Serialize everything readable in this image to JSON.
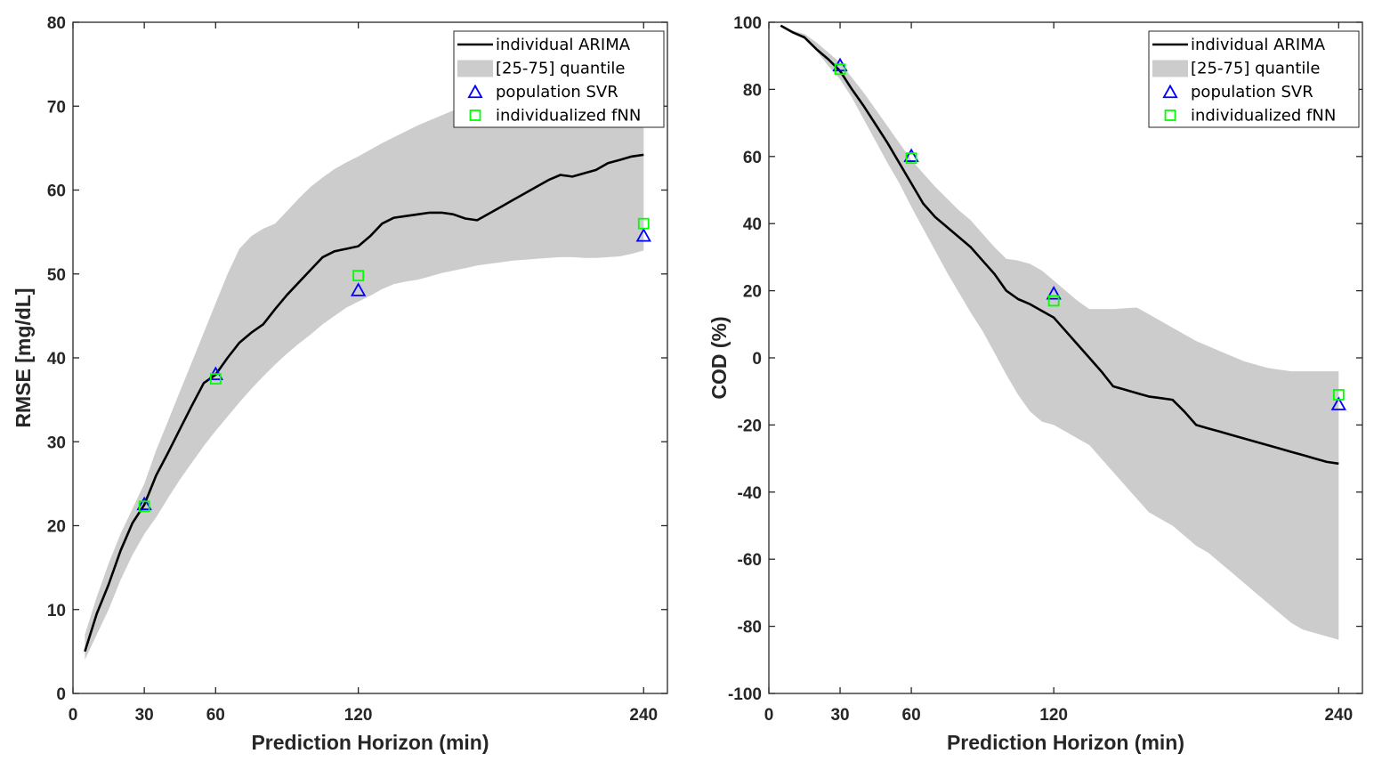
{
  "chart_data": [
    {
      "type": "line",
      "xlabel": "Prediction Horizon (min)",
      "ylabel": "RMSE [mg/dL]",
      "xlim": [
        0,
        250
      ],
      "ylim": [
        0,
        80
      ],
      "xticks": [
        0,
        30,
        60,
        120,
        240
      ],
      "yticks": [
        0,
        10,
        20,
        30,
        40,
        50,
        60,
        70,
        80
      ],
      "legend_position": "top-right",
      "legend": [
        "individual ARIMA",
        "[25-75] quantile",
        "population SVR",
        "individualized fNN"
      ],
      "colors": {
        "line": "#000000",
        "band": "#cccccc",
        "svr": "#0000ff",
        "fnn": "#00ff00"
      },
      "series": [
        {
          "name": "individual ARIMA",
          "kind": "line",
          "x": [
            5,
            10,
            15,
            20,
            25,
            30,
            35,
            40,
            45,
            50,
            55,
            60,
            65,
            70,
            75,
            80,
            85,
            90,
            95,
            100,
            105,
            110,
            115,
            120,
            125,
            130,
            135,
            140,
            145,
            150,
            155,
            160,
            165,
            170,
            175,
            180,
            185,
            190,
            195,
            200,
            205,
            210,
            215,
            220,
            225,
            230,
            235,
            240
          ],
          "y": [
            5,
            9.5,
            13,
            17,
            20.3,
            22.5,
            26,
            28.7,
            31.5,
            34.3,
            37,
            38,
            40,
            41.8,
            43,
            44,
            45.8,
            47.5,
            49,
            50.5,
            52,
            52.7,
            53,
            53.3,
            54.5,
            56,
            56.7,
            56.9,
            57.1,
            57.3,
            57.3,
            57.1,
            56.6,
            56.4,
            57.2,
            58,
            58.8,
            59.6,
            60.4,
            61.2,
            61.8,
            61.6,
            62.0,
            62.4,
            63.2,
            63.6,
            64.0,
            64.2
          ]
        },
        {
          "name": "[25-75] quantile",
          "kind": "band",
          "x": [
            5,
            10,
            15,
            20,
            25,
            30,
            35,
            40,
            45,
            50,
            55,
            60,
            65,
            70,
            75,
            80,
            85,
            90,
            95,
            100,
            105,
            110,
            115,
            120,
            125,
            130,
            135,
            140,
            145,
            150,
            155,
            160,
            165,
            170,
            175,
            180,
            185,
            190,
            195,
            200,
            205,
            210,
            215,
            220,
            225,
            230,
            235,
            240
          ],
          "low": [
            4,
            7,
            10,
            13.5,
            16.5,
            19,
            21,
            23.3,
            25.5,
            27.5,
            29.5,
            31.3,
            33,
            34.7,
            36.3,
            37.8,
            39.2,
            40.5,
            41.7,
            42.8,
            44,
            45,
            46,
            46.7,
            47.4,
            48.2,
            48.8,
            49.1,
            49.3,
            49.7,
            50.1,
            50.4,
            50.7,
            51.0,
            51.2,
            51.4,
            51.6,
            51.7,
            51.8,
            51.9,
            52.0,
            52.0,
            51.9,
            51.9,
            52.0,
            52.1,
            52.4,
            52.8
          ],
          "high": [
            7,
            11.5,
            15.5,
            19,
            22,
            25,
            29,
            32.5,
            36,
            39.5,
            43,
            46.5,
            50,
            53,
            54.5,
            55.4,
            56.0,
            57.5,
            59,
            60.4,
            61.5,
            62.5,
            63.3,
            64,
            64.8,
            65.6,
            66.3,
            67.0,
            67.7,
            68.3,
            68.9,
            69.5,
            70.2,
            71,
            71.5,
            72,
            72.5,
            73,
            73.4,
            73.7,
            74,
            74.2,
            74.3,
            74.4,
            74.5,
            74.5,
            74.5,
            74.5
          ]
        },
        {
          "name": "population SVR",
          "kind": "marker",
          "marker": "triangle",
          "x": [
            30,
            60,
            120,
            240
          ],
          "y": [
            22.5,
            38,
            48,
            54.5
          ]
        },
        {
          "name": "individualized fNN",
          "kind": "marker",
          "marker": "square",
          "x": [
            30,
            60,
            120,
            240
          ],
          "y": [
            22.3,
            37.5,
            49.8,
            56
          ]
        }
      ]
    },
    {
      "type": "line",
      "xlabel": "Prediction Horizon (min)",
      "ylabel": "COD (%)",
      "xlim": [
        0,
        250
      ],
      "ylim": [
        -100,
        100
      ],
      "xticks": [
        0,
        30,
        60,
        120,
        240
      ],
      "yticks": [
        -100,
        -80,
        -60,
        -40,
        -20,
        0,
        20,
        40,
        60,
        80,
        100
      ],
      "legend_position": "top-right",
      "legend": [
        "individual ARIMA",
        "[25-75] quantile",
        "population SVR",
        "individualized fNN"
      ],
      "colors": {
        "line": "#000000",
        "band": "#cccccc",
        "svr": "#0000ff",
        "fnn": "#00ff00"
      },
      "series": [
        {
          "name": "individual ARIMA",
          "kind": "line",
          "x": [
            5,
            10,
            15,
            20,
            25,
            30,
            35,
            40,
            45,
            50,
            55,
            60,
            65,
            70,
            75,
            80,
            85,
            90,
            95,
            100,
            105,
            110,
            115,
            120,
            125,
            130,
            135,
            140,
            145,
            150,
            155,
            160,
            165,
            170,
            175,
            180,
            185,
            190,
            195,
            200,
            205,
            210,
            215,
            220,
            225,
            230,
            235,
            240
          ],
          "y": [
            99,
            97,
            95.5,
            92,
            89,
            85.5,
            80,
            75,
            69.5,
            64,
            58,
            52,
            46,
            42,
            39,
            36,
            33,
            29,
            25,
            20,
            17.5,
            16,
            14,
            12,
            8,
            4,
            0,
            -4,
            -8.5,
            -9.5,
            -10.5,
            -11.5,
            -12,
            -12.5,
            -16,
            -20,
            -21,
            -22,
            -23,
            -24,
            -25,
            -26,
            -27,
            -28,
            -29,
            -30,
            -31,
            -31.5
          ]
        },
        {
          "name": "[25-75] quantile",
          "kind": "band",
          "x": [
            5,
            10,
            15,
            20,
            25,
            30,
            35,
            40,
            45,
            50,
            55,
            60,
            65,
            70,
            75,
            80,
            85,
            90,
            95,
            100,
            105,
            110,
            115,
            120,
            125,
            130,
            135,
            140,
            145,
            150,
            155,
            160,
            165,
            170,
            175,
            180,
            185,
            190,
            195,
            200,
            205,
            210,
            215,
            220,
            225,
            230,
            235,
            240
          ],
          "low": [
            99,
            97,
            95,
            91.5,
            87,
            83,
            77.5,
            71,
            64.5,
            58,
            52,
            45,
            38.5,
            32,
            25.5,
            19.5,
            13.5,
            8,
            1.5,
            -5,
            -11,
            -16,
            -19,
            -20,
            -22,
            -24,
            -26,
            -30,
            -34,
            -38,
            -42,
            -46,
            -48,
            -50,
            -53,
            -56,
            -58,
            -61,
            -64,
            -67,
            -70,
            -73,
            -76,
            -79,
            -81,
            -82,
            -83,
            -84
          ],
          "high": [
            99,
            97.5,
            96.5,
            94,
            91,
            88,
            83.5,
            79,
            74,
            69,
            64,
            59,
            55,
            51,
            47.5,
            44,
            41,
            37,
            33,
            29.5,
            29,
            28,
            26,
            23,
            20,
            17,
            14.5,
            14.5,
            14.5,
            14.8,
            15,
            13,
            11,
            9,
            7,
            5,
            3.5,
            2,
            0.5,
            -1,
            -2,
            -3,
            -3.5,
            -4,
            -4,
            -4,
            -4,
            -4
          ]
        },
        {
          "name": "population SVR",
          "kind": "marker",
          "marker": "triangle",
          "x": [
            30,
            60,
            120,
            240
          ],
          "y": [
            87,
            60,
            19,
            -14
          ]
        },
        {
          "name": "individualized fNN",
          "kind": "marker",
          "marker": "square",
          "x": [
            30,
            60,
            120,
            240
          ],
          "y": [
            86,
            59.5,
            17,
            -11
          ]
        }
      ]
    }
  ]
}
